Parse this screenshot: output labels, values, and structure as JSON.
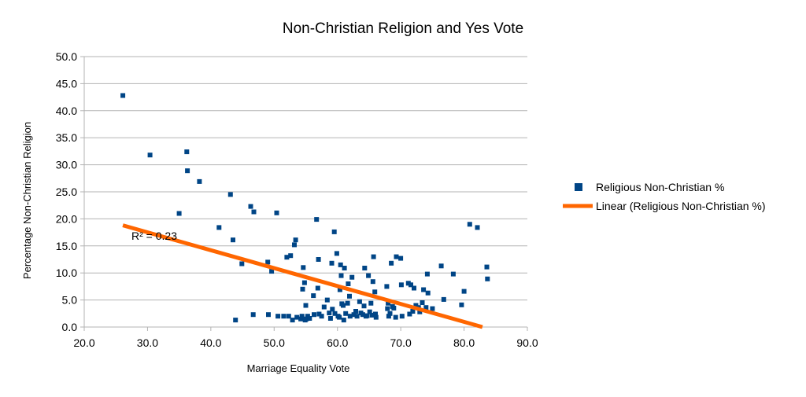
{
  "chart_data": {
    "type": "scatter",
    "title": "Non-Christian Religion and Yes Vote",
    "xlabel": "Marriage Equality Vote",
    "ylabel": "Percentage Non-Christian Religion",
    "xlim": [
      20.0,
      90.0
    ],
    "ylim": [
      0.0,
      50.0
    ],
    "x_ticks": [
      "20.0",
      "30.0",
      "40.0",
      "50.0",
      "60.0",
      "70.0",
      "80.0",
      "90.0"
    ],
    "y_ticks": [
      "0.0",
      "5.0",
      "10.0",
      "15.0",
      "20.0",
      "25.0",
      "30.0",
      "35.0",
      "40.0",
      "45.0",
      "50.0"
    ],
    "grid": "horizontal",
    "legend_position": "right",
    "series": [
      {
        "name": "Religious Non-Christian %",
        "color": "#004586",
        "marker": "square",
        "points": [
          [
            26.1,
            42.8
          ],
          [
            30.4,
            31.8
          ],
          [
            35.0,
            21.0
          ],
          [
            36.2,
            32.4
          ],
          [
            36.3,
            28.9
          ],
          [
            38.2,
            26.9
          ],
          [
            41.3,
            18.4
          ],
          [
            43.1,
            24.5
          ],
          [
            43.5,
            16.1
          ],
          [
            43.9,
            1.3
          ],
          [
            44.9,
            11.7
          ],
          [
            46.3,
            22.3
          ],
          [
            46.8,
            21.3
          ],
          [
            46.7,
            2.3
          ],
          [
            49.0,
            12.0
          ],
          [
            49.1,
            2.3
          ],
          [
            49.6,
            10.3
          ],
          [
            50.4,
            21.1
          ],
          [
            50.6,
            2.0
          ],
          [
            51.5,
            2.0
          ],
          [
            52.0,
            12.9
          ],
          [
            52.3,
            2.0
          ],
          [
            52.6,
            13.2
          ],
          [
            52.9,
            1.3
          ],
          [
            53.2,
            15.2
          ],
          [
            53.4,
            16.1
          ],
          [
            53.6,
            1.8
          ],
          [
            54.2,
            1.5
          ],
          [
            54.4,
            2.0
          ],
          [
            54.6,
            11.0
          ],
          [
            54.5,
            7.0
          ],
          [
            54.8,
            8.2
          ],
          [
            54.9,
            1.3
          ],
          [
            55.0,
            4.0
          ],
          [
            55.1,
            1.5
          ],
          [
            55.3,
            2.0
          ],
          [
            55.6,
            1.6
          ],
          [
            56.2,
            5.8
          ],
          [
            56.3,
            2.3
          ],
          [
            56.7,
            19.9
          ],
          [
            56.9,
            7.2
          ],
          [
            57.1,
            2.4
          ],
          [
            57.0,
            12.5
          ],
          [
            57.5,
            2.0
          ],
          [
            57.9,
            3.7
          ],
          [
            58.4,
            5.0
          ],
          [
            58.7,
            2.6
          ],
          [
            58.9,
            1.6
          ],
          [
            59.1,
            11.8
          ],
          [
            59.2,
            3.3
          ],
          [
            59.5,
            17.6
          ],
          [
            59.6,
            2.5
          ],
          [
            59.9,
            13.6
          ],
          [
            60.1,
            2.0
          ],
          [
            60.3,
            1.8
          ],
          [
            60.4,
            6.9
          ],
          [
            60.5,
            11.5
          ],
          [
            60.6,
            9.5
          ],
          [
            60.7,
            4.3
          ],
          [
            60.9,
            4.0
          ],
          [
            61.0,
            1.3
          ],
          [
            61.1,
            10.9
          ],
          [
            61.3,
            2.5
          ],
          [
            61.6,
            4.4
          ],
          [
            61.7,
            8.0
          ],
          [
            61.9,
            5.7
          ],
          [
            62.0,
            2.0
          ],
          [
            62.3,
            9.2
          ],
          [
            62.6,
            2.3
          ],
          [
            62.9,
            2.9
          ],
          [
            63.1,
            2.0
          ],
          [
            63.5,
            4.7
          ],
          [
            63.7,
            2.6
          ],
          [
            64.0,
            2.3
          ],
          [
            64.2,
            3.9
          ],
          [
            64.3,
            10.9
          ],
          [
            64.5,
            2.0
          ],
          [
            64.7,
            2.1
          ],
          [
            64.9,
            9.5
          ],
          [
            65.1,
            2.8
          ],
          [
            65.3,
            4.4
          ],
          [
            65.5,
            2.2
          ],
          [
            65.6,
            8.4
          ],
          [
            65.7,
            13.0
          ],
          [
            65.9,
            6.5
          ],
          [
            66.0,
            2.4
          ],
          [
            66.1,
            1.8
          ],
          [
            67.8,
            7.5
          ],
          [
            67.9,
            3.4
          ],
          [
            68.0,
            4.4
          ],
          [
            68.1,
            2.0
          ],
          [
            68.3,
            2.5
          ],
          [
            68.5,
            11.8
          ],
          [
            68.7,
            3.8
          ],
          [
            68.9,
            3.5
          ],
          [
            69.2,
            1.8
          ],
          [
            69.3,
            13.0
          ],
          [
            70.0,
            12.7
          ],
          [
            70.1,
            7.8
          ],
          [
            70.2,
            2.0
          ],
          [
            71.2,
            8.1
          ],
          [
            71.4,
            2.4
          ],
          [
            71.6,
            7.8
          ],
          [
            71.9,
            2.9
          ],
          [
            72.1,
            7.2
          ],
          [
            72.4,
            4.0
          ],
          [
            72.8,
            3.6
          ],
          [
            73.0,
            2.8
          ],
          [
            73.4,
            4.5
          ],
          [
            73.6,
            6.9
          ],
          [
            74.0,
            3.6
          ],
          [
            74.2,
            9.8
          ],
          [
            74.3,
            6.3
          ],
          [
            75.0,
            3.4
          ],
          [
            76.4,
            11.3
          ],
          [
            76.8,
            5.1
          ],
          [
            78.3,
            9.8
          ],
          [
            79.6,
            4.1
          ],
          [
            80.0,
            6.6
          ],
          [
            80.9,
            19.0
          ],
          [
            82.1,
            18.4
          ],
          [
            83.6,
            11.1
          ],
          [
            83.7,
            8.9
          ]
        ]
      }
    ],
    "trendline": {
      "name": "Linear (Religious Non-Christian %)",
      "color": "#ff6600",
      "type": "linear",
      "x": [
        26.1,
        82.9
      ],
      "y": [
        18.8,
        0.0
      ],
      "r_squared_label": "R² = 0.23"
    }
  }
}
